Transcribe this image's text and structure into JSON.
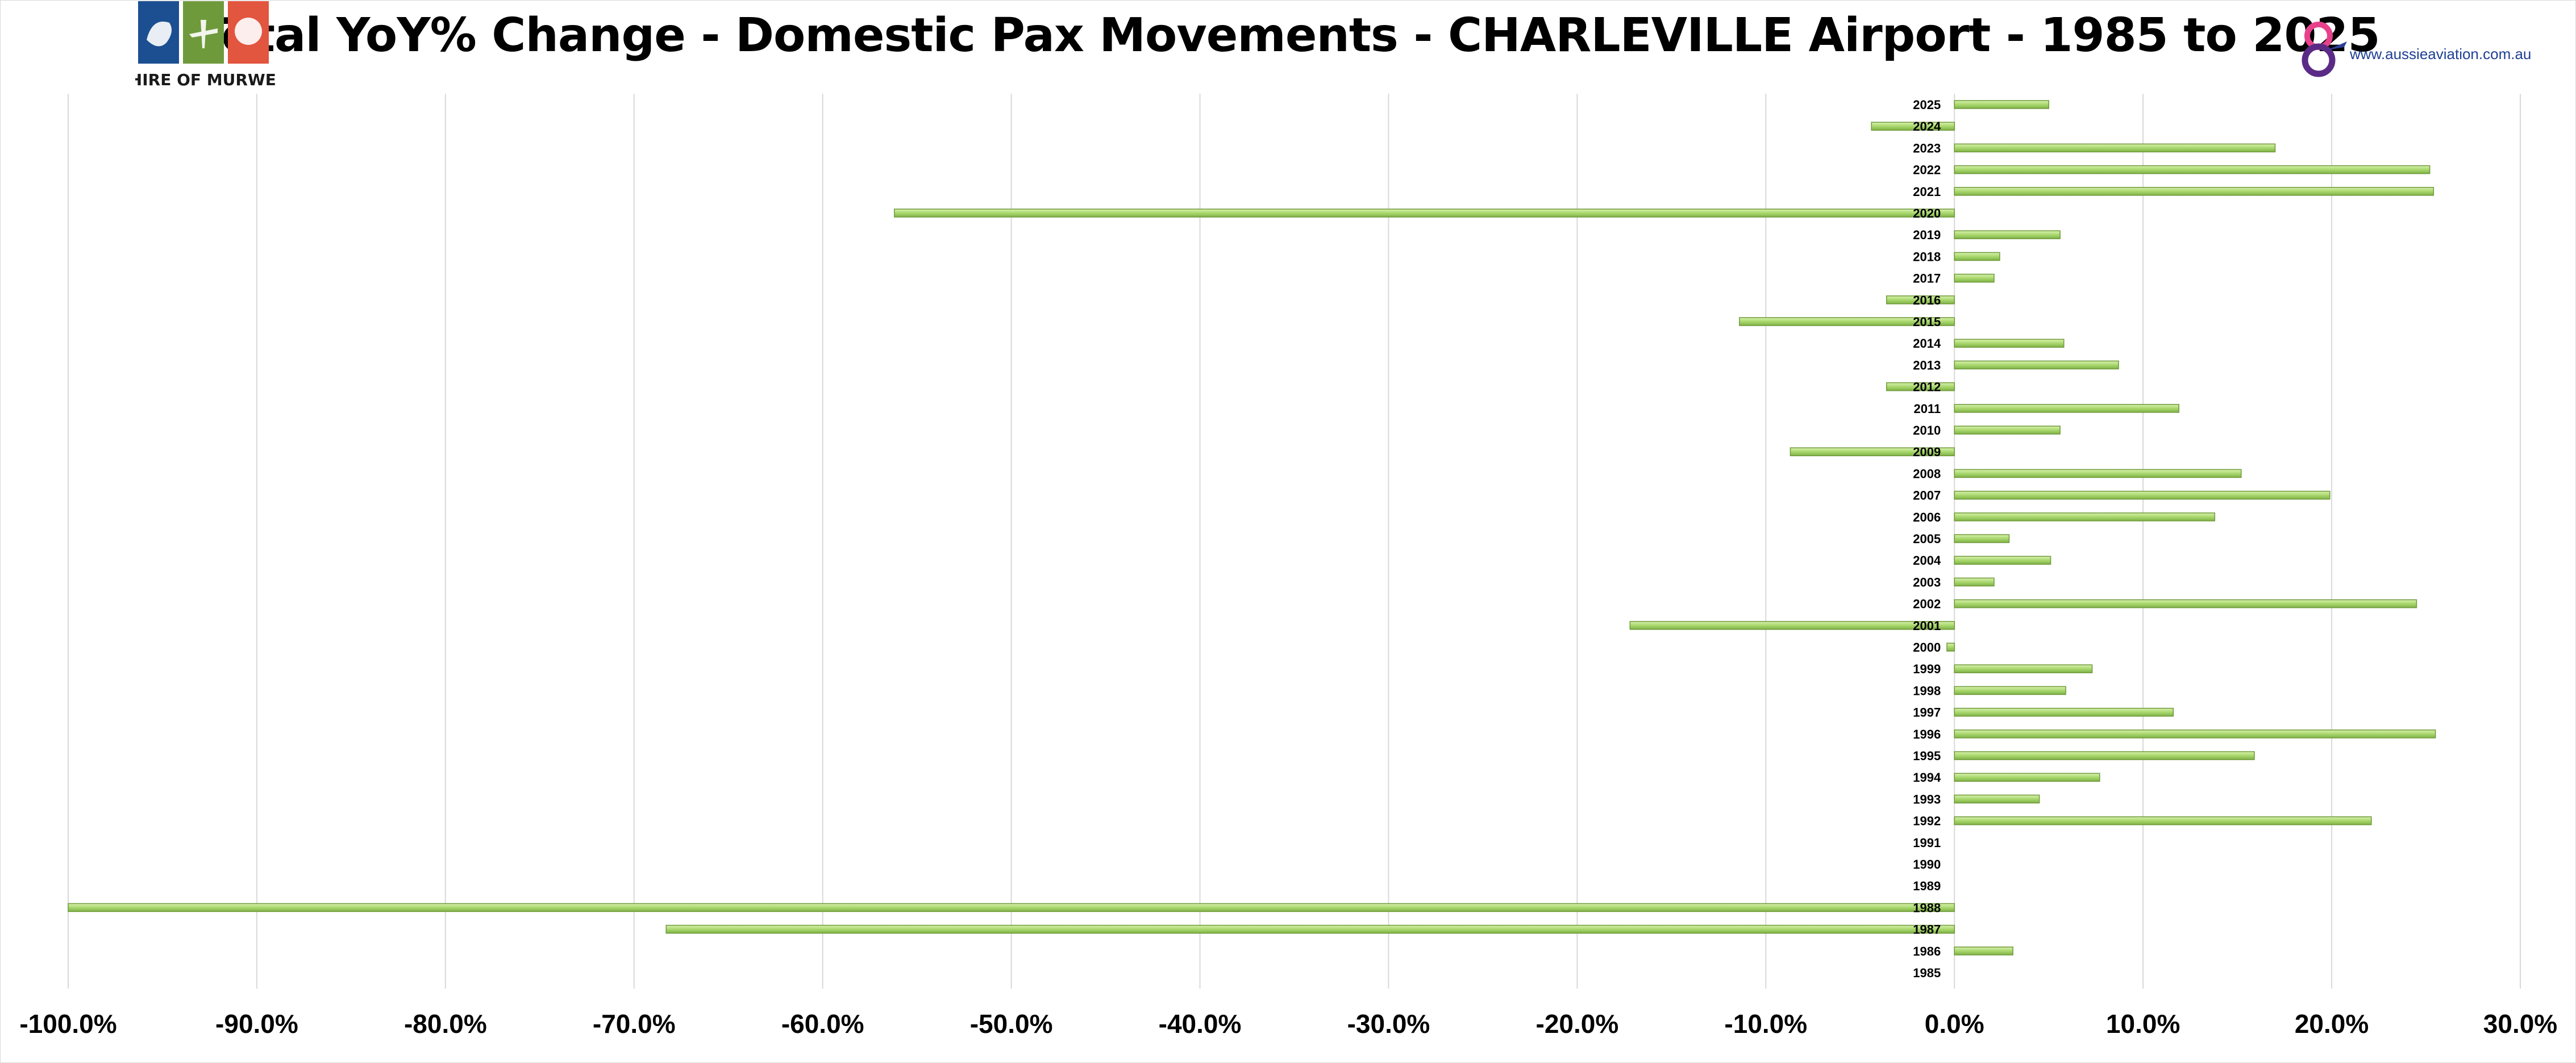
{
  "header": {
    "title": "Total YoY% Change - Domestic Pax Movements - CHARLEVILLE Airport - 1985 to 2025",
    "left_logo_text": "SHIRE OF MURWEH",
    "right_logo_url": "www.aussieaviation.com.au"
  },
  "colors": {
    "bar_fill": "#a9d86e",
    "bar_stroke": "#6f9a3a",
    "grid": "#d9d9d9",
    "logo_blue": "#1c4f91",
    "logo_green": "#6e9a3c",
    "logo_red": "#e2553f"
  },
  "chart_data": {
    "type": "bar",
    "orientation": "horizontal",
    "title": "Total YoY% Change - Domestic Pax Movements - CHARLEVILLE Airport - 1985 to 2025",
    "xlabel": "",
    "ylabel": "",
    "xlim": [
      -100,
      30
    ],
    "x_ticks": [
      -100,
      -90,
      -80,
      -70,
      -60,
      -50,
      -40,
      -30,
      -20,
      -10,
      0,
      10,
      20,
      30
    ],
    "x_tick_labels": [
      "-100.0%",
      "-90.0%",
      "-80.0%",
      "-70.0%",
      "-60.0%",
      "-50.0%",
      "-40.0%",
      "-30.0%",
      "-20.0%",
      "-10.0%",
      "0.0%",
      "10.0%",
      "20.0%",
      "30.0%"
    ],
    "grid": "vertical",
    "legend": "none",
    "categories": [
      "2025",
      "2024",
      "2023",
      "2022",
      "2021",
      "2020",
      "2019",
      "2018",
      "2017",
      "2016",
      "2015",
      "2014",
      "2013",
      "2012",
      "2011",
      "2010",
      "2009",
      "2008",
      "2007",
      "2006",
      "2005",
      "2004",
      "2003",
      "2002",
      "2001",
      "2000",
      "1999",
      "1998",
      "1997",
      "1996",
      "1995",
      "1994",
      "1993",
      "1992",
      "1991",
      "1990",
      "1989",
      "1988",
      "1987",
      "1986",
      "1985"
    ],
    "values": [
      5.0,
      -4.4,
      17.0,
      25.2,
      25.4,
      -56.2,
      5.6,
      2.4,
      2.1,
      -3.6,
      -11.4,
      5.8,
      8.7,
      -3.6,
      11.9,
      5.6,
      -8.7,
      15.2,
      19.9,
      13.8,
      2.9,
      5.1,
      2.1,
      24.5,
      -17.2,
      -0.4,
      7.3,
      5.9,
      11.6,
      25.5,
      15.9,
      7.7,
      4.5,
      22.1,
      0,
      0,
      0,
      -100.0,
      -68.3,
      3.1,
      0
    ]
  }
}
